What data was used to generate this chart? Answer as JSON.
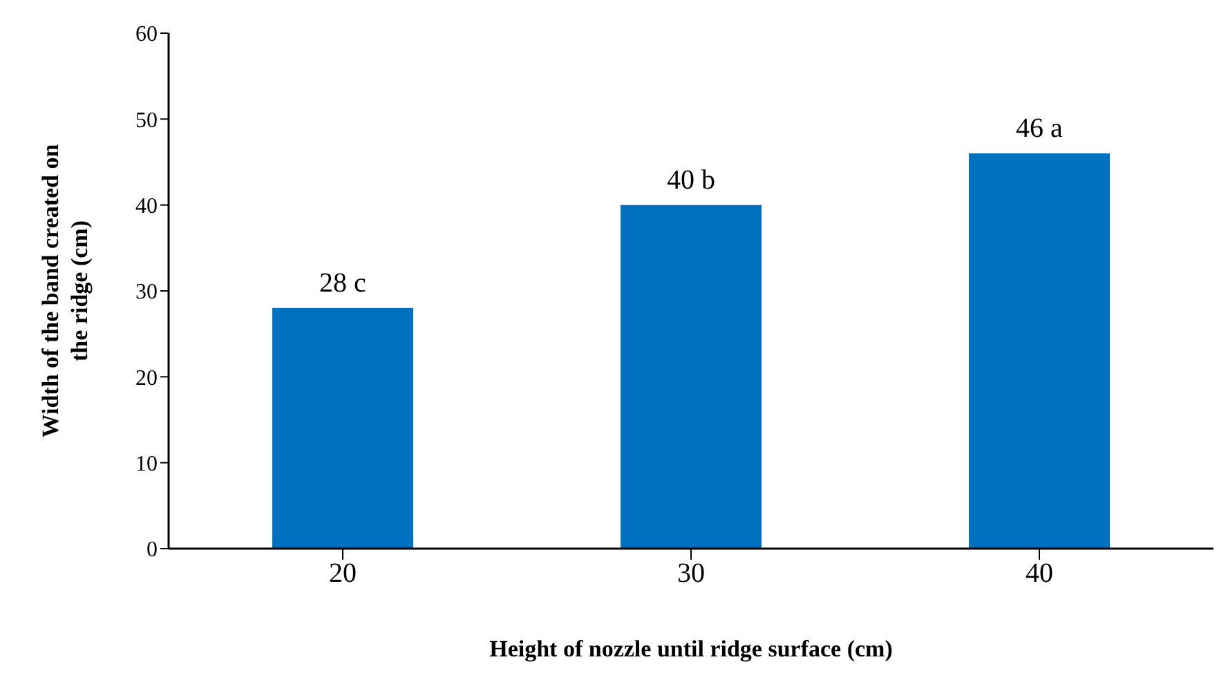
{
  "chart_data": {
    "type": "bar",
    "xlabel": "Height of nozzle until ridge surface (cm)",
    "ylabel": "Width of the band created on the ridge (cm)",
    "categories": [
      "20",
      "30",
      "40"
    ],
    "values": [
      28,
      40,
      46
    ],
    "value_labels": [
      "28 c",
      "40 b",
      "46 a"
    ],
    "color": "#0070c0",
    "ylim": [
      0,
      60
    ],
    "yticks": [
      0,
      10,
      20,
      30,
      40,
      50,
      60
    ]
  }
}
